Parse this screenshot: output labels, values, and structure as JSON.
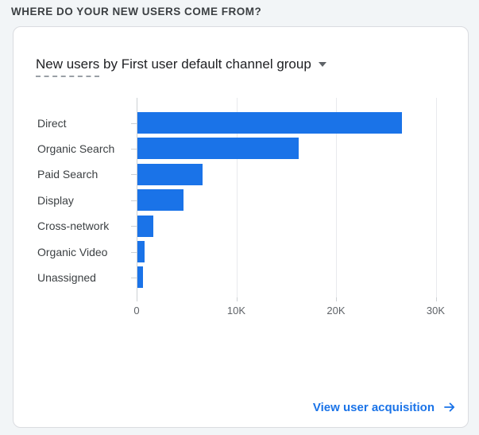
{
  "header": {
    "title": "WHERE DO YOUR NEW USERS COME FROM?"
  },
  "card": {
    "title": {
      "underlined": "New users",
      "rest": " by First user default channel group"
    },
    "dropdown_icon": "caret-down-icon",
    "footer_link": {
      "label": "View user acquisition",
      "arrow_icon": "arrow-right-icon"
    }
  },
  "chart_data": {
    "type": "bar",
    "orientation": "horizontal",
    "title": "New users by First user default channel group",
    "categories": [
      "Direct",
      "Organic Search",
      "Paid Search",
      "Display",
      "Cross-network",
      "Organic Video",
      "Unassigned"
    ],
    "values": [
      26500,
      16200,
      6500,
      4600,
      1600,
      750,
      550
    ],
    "x_ticks": [
      {
        "label": "0",
        "value": 0
      },
      {
        "label": "10K",
        "value": 10000
      },
      {
        "label": "20K",
        "value": 20000
      },
      {
        "label": "30K",
        "value": 30000
      }
    ],
    "xlim": [
      0,
      30000
    ],
    "grid": true,
    "legend": "none",
    "bar_color": "#1a73e8"
  },
  "colors": {
    "page_background": "#f2f5f7",
    "card_background": "#ffffff",
    "card_border": "#dadce0",
    "bar_blue": "#1a73e8",
    "link_blue": "#1a73e8",
    "header_text": "#3c4043",
    "title_text": "#202124",
    "axis_text": "#5f6368",
    "category_text": "#3c4043",
    "gridline": "#e8eaed",
    "axis_line": "#cdd1d4",
    "dashed_underline": "#9aa0a6"
  }
}
